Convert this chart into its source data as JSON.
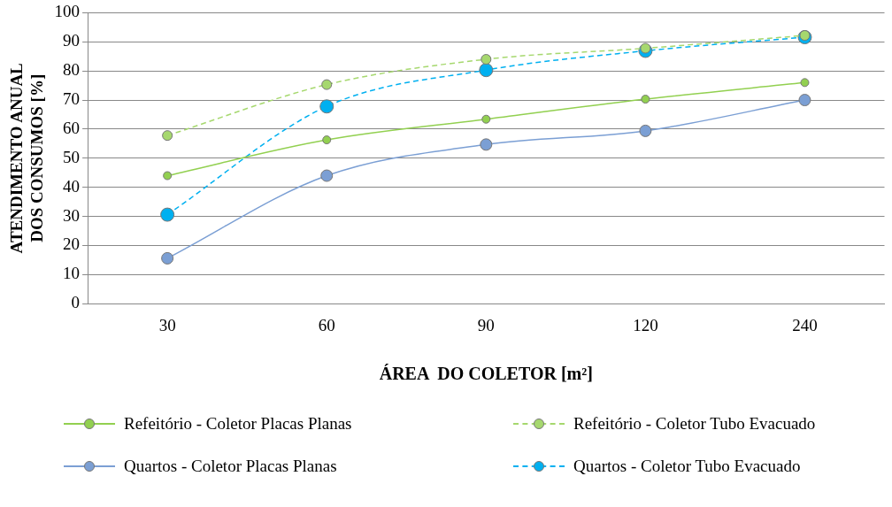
{
  "chart_data": {
    "type": "line",
    "xlabel": "ÁREA  DO COLETOR [m²]",
    "ylabel": "ATENDIMENTO ANUAL\nDOS CONSUMOS [%]",
    "categories": [
      "30",
      "60",
      "90",
      "120",
      "240"
    ],
    "ylim": [
      0,
      100
    ],
    "yticks": [
      0,
      10,
      20,
      30,
      40,
      50,
      60,
      70,
      80,
      90,
      100
    ],
    "grid": "y",
    "legend": "bottom",
    "marker": "circle",
    "series": [
      {
        "name": "Refeitório - Coletor Placas Planas",
        "color": "#92d050",
        "line_style": "solid",
        "values": [
          44,
          56.3,
          63.4,
          70.3,
          76
        ]
      },
      {
        "name": "Refeitório - Coletor Tubo Evacuado",
        "color": "#a6d86e",
        "line_style": "dashed",
        "values": [
          57.8,
          75.3,
          84,
          87.8,
          92.2
        ]
      },
      {
        "name": "Quartos - Coletor Placas Planas",
        "color": "#7b9fd4",
        "line_style": "solid",
        "values": [
          15.6,
          44,
          54.7,
          59.4,
          70
        ]
      },
      {
        "name": "Quartos - Coletor Tubo Evacuado",
        "color": "#00b0f0",
        "line_style": "dashed",
        "values": [
          30.6,
          67.8,
          80.3,
          86.9,
          91.6
        ]
      }
    ]
  }
}
